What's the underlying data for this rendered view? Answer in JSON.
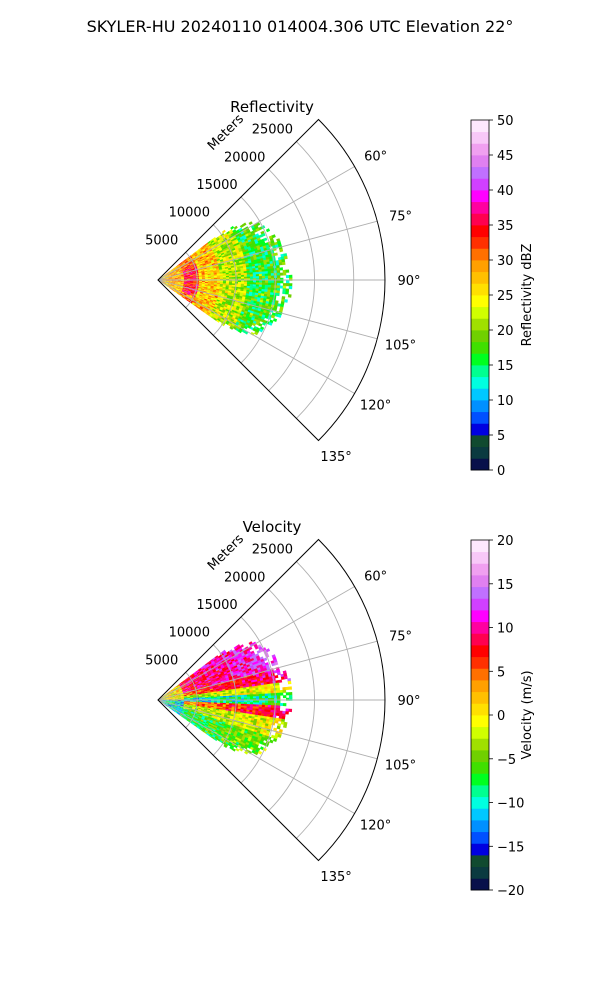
{
  "figure": {
    "suptitle": "SKYLER-HU  20240110  014004.306 UTC Elevation 22°"
  },
  "colors": {
    "grid": "#b0b0b0",
    "reflectivity_scale": [
      "#08104a",
      "#0a3a40",
      "#104a30",
      "#0000e0",
      "#0050ff",
      "#0090ff",
      "#00c8ff",
      "#00ffe0",
      "#00ff90",
      "#00ff20",
      "#40e000",
      "#70d000",
      "#a0e000",
      "#d0ff00",
      "#ffff00",
      "#ffe000",
      "#ffc000",
      "#ffa000",
      "#ff7000",
      "#ff3000",
      "#ff0000",
      "#ff0050",
      "#ff00a0",
      "#ff00ff",
      "#d040ff",
      "#c070ff",
      "#e080f0",
      "#f0a0f0",
      "#f8c8f8",
      "#fde8fd"
    ],
    "velocity_scale": [
      "#08104a",
      "#0a3a40",
      "#104a30",
      "#0000e0",
      "#0050ff",
      "#0090ff",
      "#00c8ff",
      "#00ffe0",
      "#00ff90",
      "#00ff20",
      "#40e000",
      "#70d000",
      "#a0e000",
      "#d0ff00",
      "#ffff00",
      "#ffe000",
      "#ffc000",
      "#ffa000",
      "#ff7000",
      "#ff3000",
      "#ff0000",
      "#ff0050",
      "#ff00a0",
      "#ff00ff",
      "#d040ff",
      "#c070ff",
      "#e080f0",
      "#f0a0f0",
      "#f8c8f8",
      "#fde8fd"
    ]
  },
  "chart_data": [
    {
      "type": "heatmap",
      "projection": "polar-sector",
      "title": "Reflectivity",
      "radial_label": "Meters",
      "range_ticks": [
        "5000",
        "10000",
        "15000",
        "20000",
        "25000"
      ],
      "range_values": [
        5000,
        10000,
        15000,
        20000,
        25000
      ],
      "rmax": 29000,
      "azimuth_ticks": [
        "60°",
        "75°",
        "90°",
        "105°",
        "120°",
        "135°"
      ],
      "azimuth_values": [
        60,
        75,
        90,
        105,
        120,
        135
      ],
      "azimuth_span": [
        45,
        135
      ],
      "echo": {
        "azimuth_range": [
          53,
          125
        ],
        "max_range_m": 17000
      },
      "colorbar": {
        "label": "Reflectivity dBZ",
        "min": 0,
        "max": 50,
        "ticks": [
          "0",
          "5",
          "10",
          "15",
          "20",
          "25",
          "30",
          "35",
          "40",
          "45",
          "50"
        ],
        "tick_values": [
          0,
          5,
          10,
          15,
          20,
          25,
          30,
          35,
          40,
          45,
          50
        ]
      }
    },
    {
      "type": "heatmap",
      "projection": "polar-sector",
      "title": "Velocity",
      "radial_label": "Meters",
      "range_ticks": [
        "5000",
        "10000",
        "15000",
        "20000",
        "25000"
      ],
      "range_values": [
        5000,
        10000,
        15000,
        20000,
        25000
      ],
      "rmax": 29000,
      "azimuth_ticks": [
        "60°",
        "75°",
        "90°",
        "105°",
        "120°",
        "135°"
      ],
      "azimuth_values": [
        60,
        75,
        90,
        105,
        120,
        135
      ],
      "azimuth_span": [
        45,
        135
      ],
      "echo": {
        "azimuth_range": [
          53,
          125
        ],
        "max_range_m": 17000
      },
      "colorbar": {
        "label": "Velocity (m/s)",
        "min": -20,
        "max": 20,
        "ticks": [
          "−20",
          "−15",
          "−10",
          "−5",
          "0",
          "5",
          "10",
          "15",
          "20"
        ],
        "tick_values": [
          -20,
          -15,
          -10,
          -5,
          0,
          5,
          10,
          15,
          20
        ]
      }
    }
  ]
}
